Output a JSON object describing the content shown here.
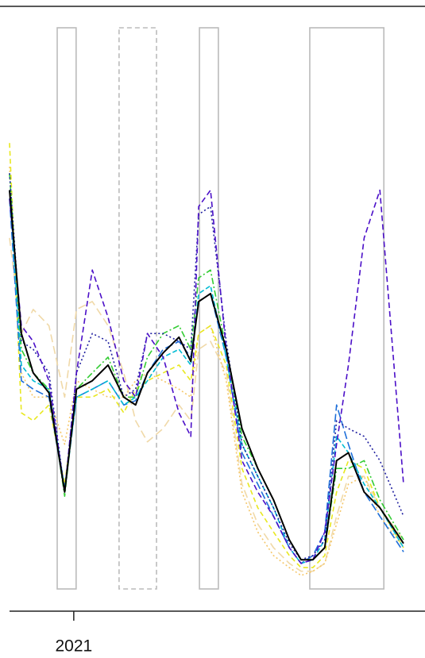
{
  "chart_data": {
    "type": "line",
    "x": [
      0,
      3,
      6,
      10,
      14,
      17,
      21,
      25,
      29,
      32,
      35,
      39,
      43,
      46,
      48,
      51,
      55,
      59,
      63,
      67,
      71,
      74,
      77,
      80,
      83,
      86,
      90,
      94,
      100
    ],
    "xlim": [
      0,
      100
    ],
    "xticks": [
      {
        "value": 16.3,
        "label": "2021"
      }
    ],
    "ylim": [
      0,
      100
    ],
    "periods": [
      {
        "x": [
          12.1,
          16.9
        ],
        "style": "solid"
      },
      {
        "x": [
          27.8,
          37.3
        ],
        "style": "dashed"
      },
      {
        "x": [
          48.2,
          53.0
        ],
        "style": "solid"
      },
      {
        "x": [
          76.2,
          95.0
        ],
        "style": "solid"
      }
    ],
    "series": [
      {
        "color": "#f0d9a8",
        "dash": "10 5",
        "values": [
          61.7,
          45.9,
          49.9,
          47.2,
          35.4,
          49.9,
          51.2,
          47.2,
          39.4,
          31.5,
          28.0,
          30.2,
          34.1,
          31.5,
          43.3,
          44.6,
          39.4,
          21.0,
          14.4,
          10.5,
          7.9,
          6.6,
          6.6,
          7.9,
          15.7,
          22.3,
          22.3,
          17.1,
          11.8
        ]
      },
      {
        "color": "#f5c76a",
        "dash": "2 3",
        "values": [
          73.5,
          39.4,
          35.4,
          35.4,
          27.6,
          38.1,
          36.7,
          35.4,
          35.4,
          38.1,
          39.4,
          38.1,
          36.7,
          35.4,
          45.9,
          47.2,
          38.1,
          19.7,
          13.1,
          9.2,
          7.2,
          5.9,
          6.6,
          7.9,
          14.4,
          21.0,
          22.3,
          15.7,
          10.5
        ]
      },
      {
        "color": "#e8e820",
        "dash": "6 4",
        "values": [
          77.4,
          32.8,
          31.5,
          34.1,
          21.0,
          35.4,
          35.4,
          36.7,
          32.8,
          36.7,
          38.1,
          39.4,
          40.7,
          38.1,
          45.9,
          47.2,
          40.7,
          23.6,
          17.1,
          13.1,
          9.2,
          7.2,
          7.2,
          9.2,
          19.7,
          24.9,
          23.6,
          17.1,
          10.5
        ]
      },
      {
        "color": "#1e6fd9",
        "dash": "10 4",
        "values": [
          68.2,
          38.1,
          36.7,
          35.4,
          19.7,
          35.4,
          36.7,
          38.1,
          34.1,
          34.8,
          39.4,
          43.3,
          44.6,
          42.0,
          51.2,
          52.5,
          42.0,
          26.2,
          21.0,
          15.7,
          10.5,
          7.9,
          9.2,
          13.1,
          34.1,
          27.6,
          19.7,
          15.7,
          9.8
        ]
      },
      {
        "color": "#00bcd4",
        "dash": "6 3",
        "values": [
          69.6,
          40.7,
          38.1,
          36.7,
          20.3,
          35.4,
          36.7,
          38.1,
          34.1,
          35.4,
          38.1,
          42.0,
          43.3,
          40.7,
          52.5,
          53.8,
          42.0,
          27.6,
          22.3,
          17.1,
          10.5,
          7.9,
          8.5,
          11.8,
          28.9,
          26.2,
          21.0,
          17.1,
          10.5
        ]
      },
      {
        "color": "#33cc33",
        "dash": "8 3 2 3",
        "values": [
          72.4,
          43.3,
          39.4,
          36.7,
          19.0,
          36.7,
          39.4,
          42.0,
          35.4,
          35.4,
          42.0,
          45.9,
          47.2,
          43.3,
          55.1,
          56.4,
          43.3,
          28.9,
          23.6,
          18.4,
          11.8,
          8.5,
          8.5,
          10.5,
          23.6,
          23.6,
          24.9,
          18.4,
          11.8
        ]
      },
      {
        "color": "#2020a0",
        "dash": "2 3",
        "values": [
          72.4,
          44.6,
          43.3,
          39.4,
          19.7,
          39.4,
          45.9,
          44.6,
          35.4,
          36.7,
          45.9,
          45.9,
          44.6,
          43.3,
          65.6,
          66.9,
          44.6,
          27.6,
          22.3,
          17.1,
          11.2,
          8.5,
          9.2,
          11.8,
          31.5,
          30.2,
          28.9,
          24.9,
          15.7
        ]
      },
      {
        "color": "#4b0fc8",
        "dash": "7 4",
        "values": [
          68.2,
          47.2,
          44.6,
          38.1,
          19.7,
          39.4,
          56.4,
          48.6,
          38.1,
          35.4,
          45.9,
          42.0,
          32.8,
          28.9,
          66.9,
          69.6,
          43.3,
          24.9,
          19.7,
          15.7,
          10.5,
          7.9,
          8.5,
          13.1,
          27.6,
          40.7,
          61.7,
          69.6,
          21.0
        ]
      },
      {
        "color": "#000000",
        "dash": "none",
        "values": [
          69.6,
          45.9,
          39.4,
          36.1,
          19.7,
          36.7,
          38.1,
          40.7,
          35.4,
          34.1,
          39.4,
          42.7,
          45.3,
          41.3,
          51.2,
          52.5,
          43.3,
          30.2,
          23.6,
          18.4,
          11.8,
          8.5,
          8.5,
          10.5,
          24.9,
          26.2,
          19.7,
          17.1,
          11.2
        ]
      }
    ]
  }
}
